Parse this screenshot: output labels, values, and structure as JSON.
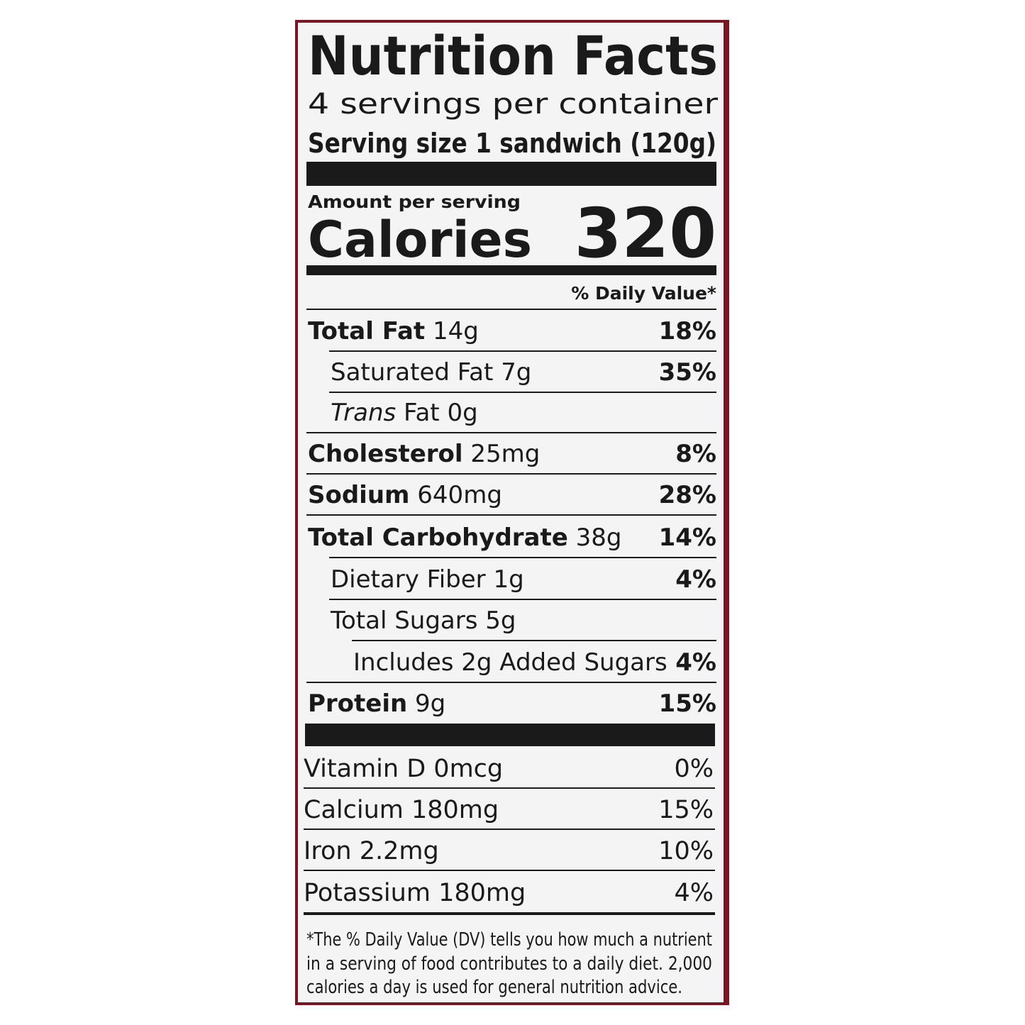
{
  "title": "Nutrition Facts",
  "servings": "4 servings per container",
  "serving_size": {
    "label": "Serving size",
    "value": "1 sandwich (120g)"
  },
  "amount_per_serving": "Amount per serving",
  "calories": {
    "label": "Calories",
    "value": "320"
  },
  "daily_value_header": "% Daily Value*",
  "nutrients": [
    {
      "name": "Total Fat",
      "amount": "14g",
      "dv": "18%"
    },
    {
      "name": "Saturated Fat",
      "amount": "7g",
      "dv": "35%"
    },
    {
      "name": "Trans",
      "name_suffix": "Fat",
      "amount": "0g"
    },
    {
      "name": "Cholesterol",
      "amount": "25mg",
      "dv": "8%"
    },
    {
      "name": "Sodium",
      "amount": "640mg",
      "dv": "28%"
    },
    {
      "name": "Total Carbohydrate",
      "amount": "38g",
      "dv": "14%"
    },
    {
      "name": "Dietary Fiber",
      "amount": "1g",
      "dv": "4%"
    },
    {
      "name": "Total Sugars",
      "amount": "5g"
    },
    {
      "name": "Includes 2g Added Sugars",
      "dv": "4%"
    },
    {
      "name": "Protein",
      "amount": "9g",
      "dv": "15%"
    }
  ],
  "vitamins": [
    {
      "name": "Vitamin D",
      "amount": "0mcg",
      "dv": "0%"
    },
    {
      "name": "Calcium",
      "amount": "180mg",
      "dv": "15%"
    },
    {
      "name": "Iron",
      "amount": "2.2mg",
      "dv": "10%"
    },
    {
      "name": "Potassium",
      "amount": "180mg",
      "dv": "4%"
    }
  ],
  "footnote": [
    "*The % Daily Value (DV) tells you how much a nutrient",
    "in a serving of food contributes to a daily diet. 2,000",
    "calories a day is used for general nutrition advice."
  ]
}
